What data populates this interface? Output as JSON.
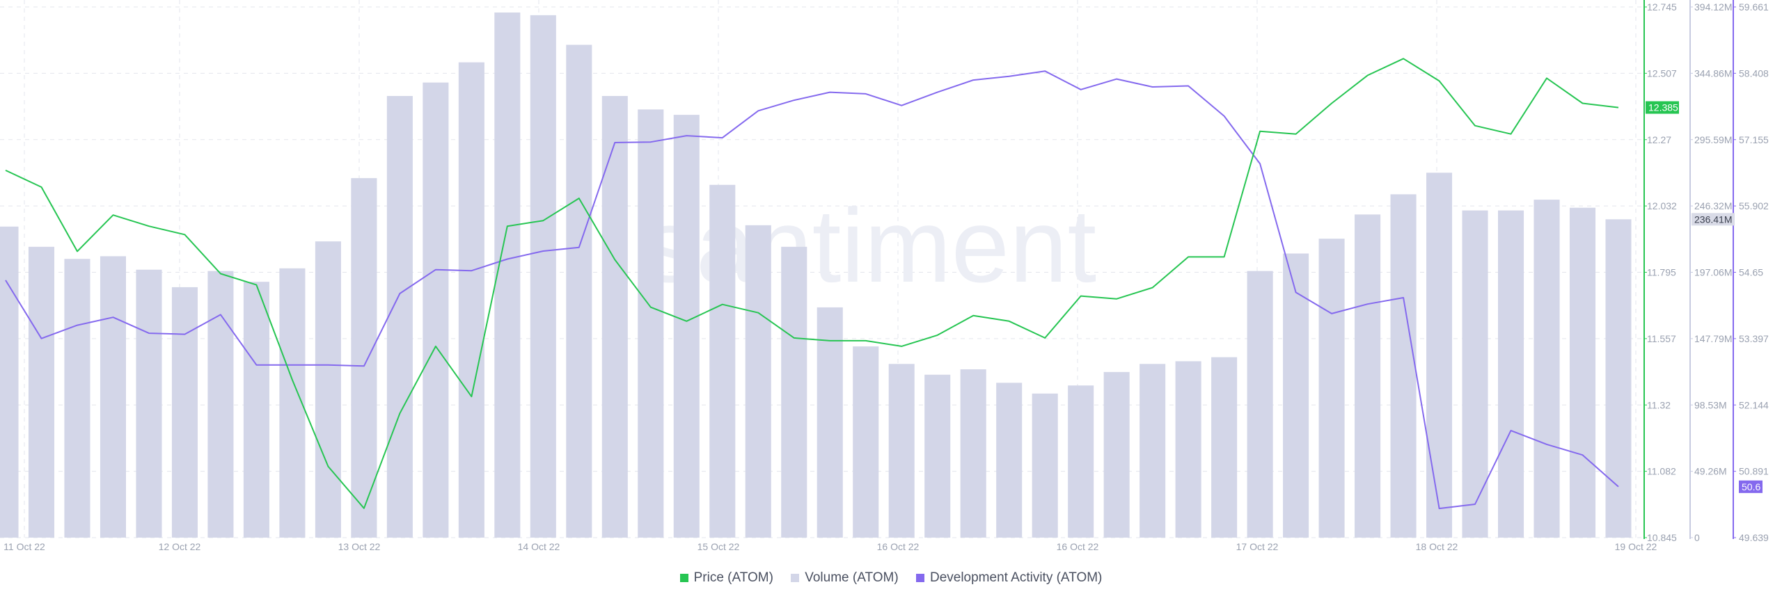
{
  "watermark": "santiment",
  "colors": {
    "price": "#26c552",
    "volume": "#d3d6e8",
    "dev": "#8469ee",
    "grid": "#e3e5ec",
    "tick": "#9aa1b0"
  },
  "chart_data": {
    "type": "bar",
    "x_ticks": [
      "11 Oct 22",
      "12 Oct 22",
      "13 Oct 22",
      "14 Oct 22",
      "15 Oct 22",
      "16 Oct 22",
      "16 Oct 22",
      "17 Oct 22",
      "18 Oct 22",
      "19 Oct 22"
    ],
    "axes": {
      "price": {
        "ticks": [
          "12.745",
          "12.507",
          "12.27",
          "12.032",
          "11.795",
          "11.557",
          "11.32",
          "11.082",
          "10.845"
        ],
        "range": [
          10.845,
          12.745
        ]
      },
      "volume": {
        "ticks": [
          "394.12M",
          "344.86M",
          "295.59M",
          "246.32M",
          "197.06M",
          "147.79M",
          "98.53M",
          "49.26M",
          "0"
        ],
        "range": [
          0,
          394.12
        ]
      },
      "dev": {
        "ticks": [
          "59.661",
          "58.408",
          "57.155",
          "55.902",
          "54.65",
          "53.397",
          "52.144",
          "50.891",
          "49.639"
        ],
        "range": [
          49.639,
          59.661
        ]
      }
    },
    "current_labels": {
      "price": "12.385",
      "volume": "236.41M",
      "dev": "50.6"
    },
    "series": [
      {
        "name": "Price (ATOM)",
        "type": "line",
        "values": [
          12.16,
          12.1,
          11.87,
          12.0,
          11.96,
          11.93,
          11.79,
          11.75,
          11.41,
          11.1,
          10.95,
          11.29,
          11.53,
          11.35,
          11.96,
          11.98,
          12.06,
          11.84,
          11.67,
          11.62,
          11.68,
          11.65,
          11.56,
          11.55,
          11.55,
          11.53,
          11.57,
          11.64,
          11.62,
          11.56,
          11.71,
          11.7,
          11.74,
          11.85,
          11.85,
          12.3,
          12.29,
          12.4,
          12.5,
          12.56,
          12.48,
          12.32,
          12.29,
          12.49,
          12.4,
          12.385
        ]
      },
      {
        "name": "Volume (ATOM)",
        "type": "bar",
        "values": [
          231,
          216,
          207,
          209,
          199,
          186,
          198,
          190,
          200,
          220,
          267,
          328,
          338,
          353,
          390,
          388,
          366,
          328,
          318,
          314,
          262,
          232,
          216,
          171,
          142,
          129,
          121,
          125,
          115,
          107,
          113,
          123,
          129,
          131,
          134,
          198,
          211,
          222,
          240,
          255,
          271,
          243,
          243,
          251,
          245,
          236.41
        ]
      },
      {
        "name": "Development Activity (ATOM)",
        "type": "line",
        "values": [
          54.5,
          53.4,
          53.65,
          53.8,
          53.5,
          53.48,
          53.85,
          52.9,
          52.9,
          52.9,
          52.88,
          54.25,
          54.7,
          54.68,
          54.9,
          55.05,
          55.12,
          57.1,
          57.11,
          57.23,
          57.19,
          57.7,
          57.9,
          58.05,
          58.02,
          57.8,
          58.05,
          58.28,
          58.35,
          58.45,
          58.1,
          58.3,
          58.15,
          58.17,
          57.6,
          56.7,
          54.27,
          53.87,
          54.05,
          54.17,
          50.19,
          50.27,
          51.66,
          51.4,
          51.2,
          50.6
        ]
      }
    ]
  },
  "legend": [
    {
      "label": "Price (ATOM)",
      "color": "#26c552"
    },
    {
      "label": "Volume (ATOM)",
      "color": "#d3d6e8"
    },
    {
      "label": "Development Activity (ATOM)",
      "color": "#8469ee"
    }
  ]
}
